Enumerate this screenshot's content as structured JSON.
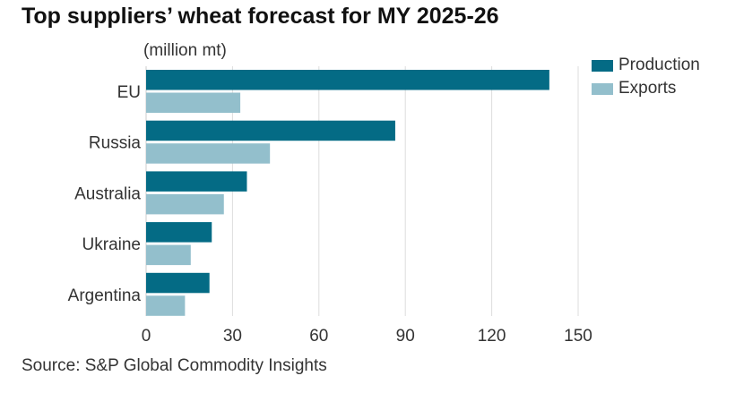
{
  "chart_data": {
    "type": "bar",
    "orientation": "horizontal",
    "title": "Top suppliers’ wheat forecast for MY 2025-26",
    "unit_label": "(million mt)",
    "categories": [
      "EU",
      "Russia",
      "Australia",
      "Ukraine",
      "Argentina"
    ],
    "series": [
      {
        "name": "Production",
        "color": "#046b85",
        "values": [
          140,
          86.5,
          35,
          22.8,
          22
        ]
      },
      {
        "name": "Exports",
        "color": "#93bfcc",
        "values": [
          32.7,
          43,
          27,
          15.5,
          13.5
        ]
      }
    ],
    "xlim": [
      0,
      150
    ],
    "xticks": [
      0,
      30,
      60,
      90,
      120,
      150
    ],
    "grid": true,
    "legend": "top-right",
    "source": "Source: S&P Global Commodity Insights"
  }
}
